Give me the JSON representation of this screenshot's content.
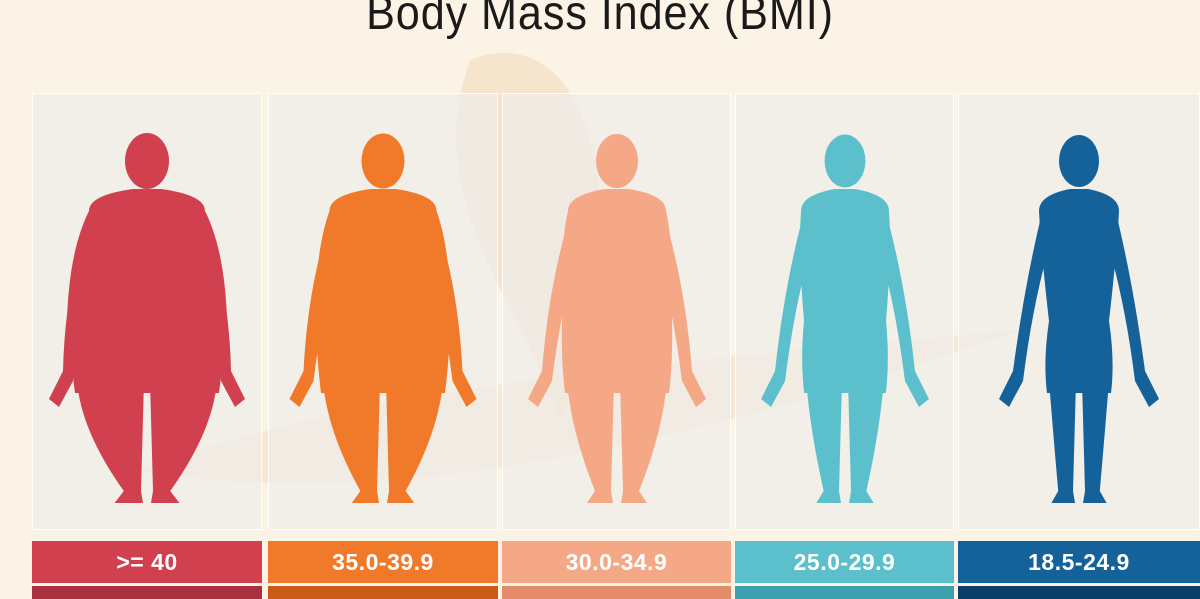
{
  "title": "Body Mass Index (BMI)",
  "categories": [
    {
      "label": ">= 40",
      "color": "#d1404f",
      "dark": "#a8303f",
      "build": 1.0
    },
    {
      "label": "35.0-39.9",
      "color": "#f07a2a",
      "dark": "#c95a18",
      "build": 0.75
    },
    {
      "label": "30.0-34.9",
      "color": "#f4a886",
      "dark": "#e38a68",
      "build": 0.5
    },
    {
      "label": "25.0-29.9",
      "color": "#5cc0cc",
      "dark": "#3aa0ae",
      "build": 0.22
    },
    {
      "label": "18.5-24.9",
      "color": "#15629a",
      "dark": "#0b3f68",
      "build": 0.0
    }
  ]
}
